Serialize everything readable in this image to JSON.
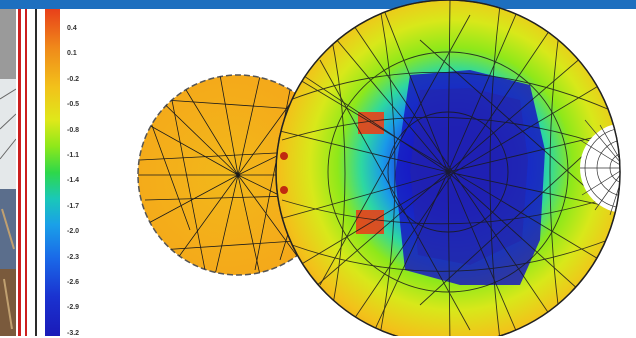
{
  "colors": {
    "header_bar": "#1d6fbf",
    "frame_stripe": "#cc1f1f",
    "mesh_line": "#1a1a1a",
    "scale_high": "#e8401a",
    "scale_mid": "#c8e81a",
    "scale_low": "#1a1ab8"
  },
  "legend": {
    "labels": [
      "0.4",
      "0.1",
      "-0.2",
      "-0.5",
      "-0.8",
      "-1.1",
      "-1.4",
      "-1.7",
      "-2.0",
      "-2.3",
      "-2.6",
      "-2.9",
      "-3.2"
    ]
  },
  "figure": {
    "kind": "finite element contour plot",
    "icons": [
      "color-scale-legend",
      "mesh-grid"
    ]
  }
}
